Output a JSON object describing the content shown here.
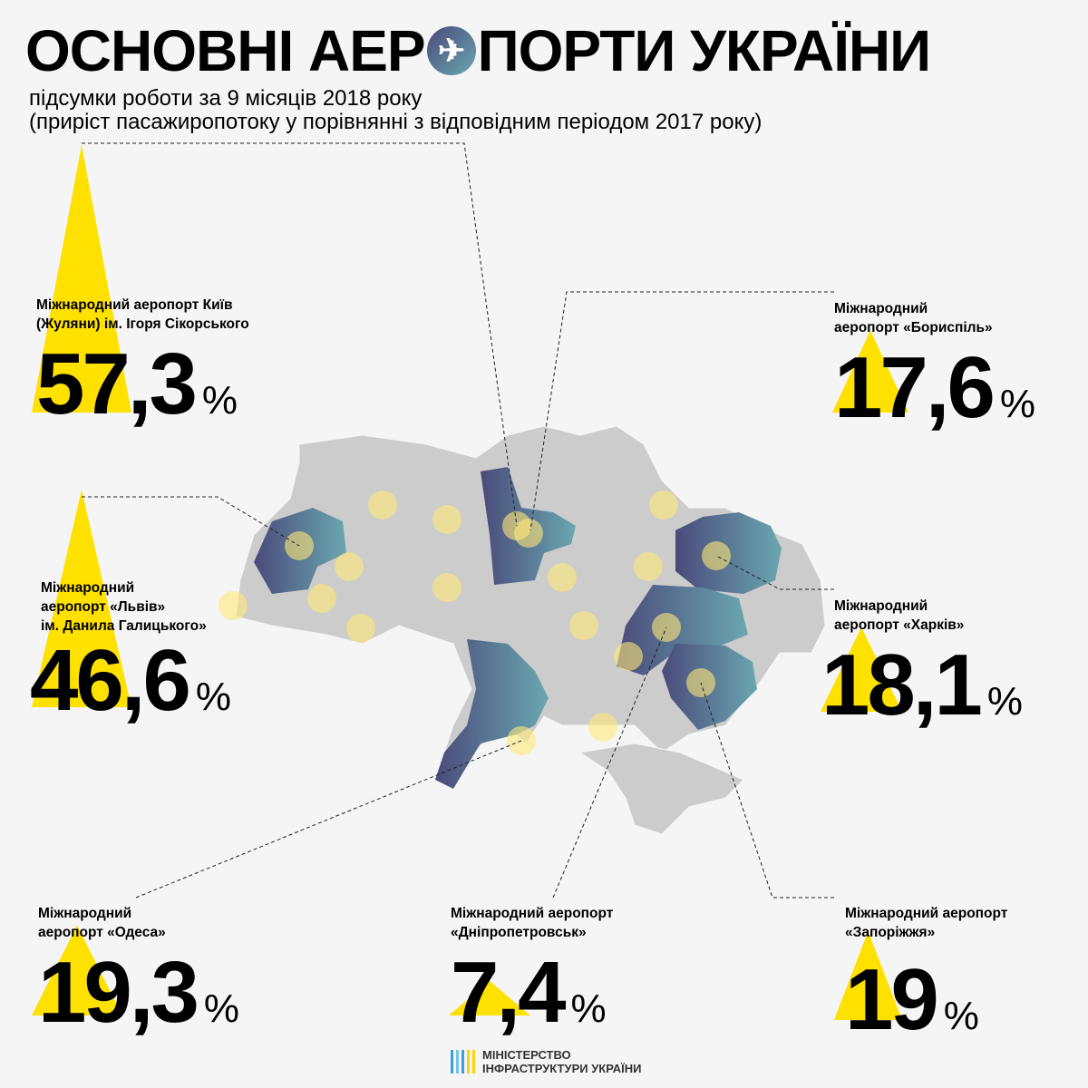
{
  "header": {
    "title_part1": "ОСНОВНІ АЕР",
    "title_part2": "ПОРТИ УКРАЇНИ",
    "title_icon": "airplane-icon",
    "subtitle_line1": "підсумки роботи за 9 місяців 2018 року",
    "subtitle_line2": "(приріст пасажиропотоку у порівнянні з відповідним періодом 2017 року)"
  },
  "colors": {
    "accent_yellow": "#ffe100",
    "region_dark": "#4a4a7a",
    "region_light": "#6aa7b0",
    "map_gray": "#cccccc",
    "background": "#f5f5f5"
  },
  "airports": [
    {
      "id": "kyiv",
      "label": "Міжнародний аеропорт Київ\n(Жуляни) ім. Ігоря Сікорського",
      "value": "57,3",
      "growth_percent": 57.3,
      "unit": "%"
    },
    {
      "id": "boryspil",
      "label": "Міжнародний\nаеропорт «Бориспіль»",
      "value": "17,6",
      "growth_percent": 17.6,
      "unit": "%"
    },
    {
      "id": "lviv",
      "label": "Міжнародний\nаеропорт «Львів»\nім. Данила Галицького»",
      "value": "46,6",
      "growth_percent": 46.6,
      "unit": "%"
    },
    {
      "id": "kharkiv",
      "label": "Міжнародний\nаеропорт «Харків»",
      "value": "18,1",
      "growth_percent": 18.1,
      "unit": "%"
    },
    {
      "id": "odesa",
      "label": "Міжнародний\nаеропорт «Одеса»",
      "value": "19,3",
      "growth_percent": 19.3,
      "unit": "%"
    },
    {
      "id": "dnipro",
      "label": "Міжнародний аеропорт\n«Дніпропетровськ»",
      "value": "7,4",
      "growth_percent": 7.4,
      "unit": "%"
    },
    {
      "id": "zaporizhzhia",
      "label": "Міжнародний аеропорт\n«Запоріжжя»",
      "value": "19",
      "growth_percent": 19,
      "unit": "%"
    }
  ],
  "footer": {
    "line1": "МІНІСТЕРСТВО",
    "line2": "ІНФРАСТРУКТУРИ УКРАЇНИ",
    "logo_colors": [
      "#3aa0e0",
      "#7cc0f0",
      "#3aa0e0",
      "#ffd200",
      "#ffd200"
    ]
  }
}
